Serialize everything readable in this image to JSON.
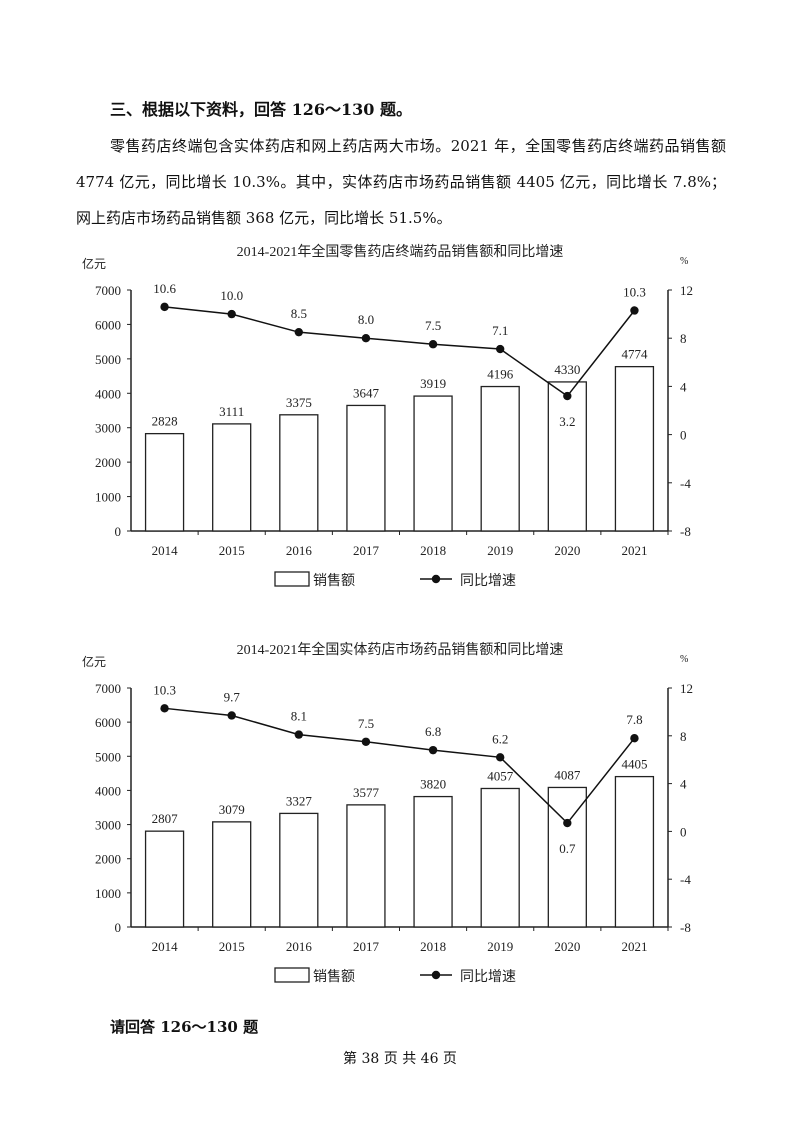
{
  "heading": "三、根据以下资料，回答 126～130 题。",
  "paragraph": "零售药店终端包含实体药店和网上药店两大市场。2021 年，全国零售药店终端药品销售额 4774 亿元，同比增长 10.3%。其中，实体药店市场药品销售额 4405 亿元，同比增长 7.8%；网上药店市场药品销售额 368 亿元，同比增长 51.5%。",
  "chart_data": [
    {
      "type": "bar+line",
      "title": "2014-2021年全国零售药店终端药品销售额和同比增速",
      "ylabel_left": "亿元",
      "ylabel_right": "%",
      "categories": [
        "2014",
        "2015",
        "2016",
        "2017",
        "2018",
        "2019",
        "2020",
        "2021"
      ],
      "ylim_left": [
        0,
        7000
      ],
      "yticks_left": [
        0,
        1000,
        2000,
        3000,
        4000,
        5000,
        6000,
        7000
      ],
      "ylim_right": [
        -8,
        12
      ],
      "yticks_right": [
        -8,
        -4,
        0,
        4,
        8,
        12
      ],
      "grid": false,
      "legend_position": "bottom",
      "series": [
        {
          "name": "销售额",
          "type": "bar",
          "axis": "left",
          "values": [
            2828,
            3111,
            3375,
            3647,
            3919,
            4196,
            4330,
            4774
          ],
          "labels": [
            "2828",
            "3111",
            "3375",
            "3647",
            "3919",
            "4196",
            "4330",
            "4774"
          ]
        },
        {
          "name": "同比增速",
          "type": "line",
          "axis": "right",
          "values": [
            10.6,
            10.0,
            8.5,
            8.0,
            7.5,
            7.1,
            3.2,
            10.3
          ],
          "labels": [
            "10.6",
            "10.0",
            "8.5",
            "8.0",
            "7.5",
            "7.1",
            "3.2",
            "10.3"
          ]
        }
      ]
    },
    {
      "type": "bar+line",
      "title": "2014-2021年全国实体药店市场药品销售额和同比增速",
      "ylabel_left": "亿元",
      "ylabel_right": "%",
      "categories": [
        "2014",
        "2015",
        "2016",
        "2017",
        "2018",
        "2019",
        "2020",
        "2021"
      ],
      "ylim_left": [
        0,
        7000
      ],
      "yticks_left": [
        0,
        1000,
        2000,
        3000,
        4000,
        5000,
        6000,
        7000
      ],
      "ylim_right": [
        -8,
        12
      ],
      "yticks_right": [
        -8,
        -4,
        0,
        4,
        8,
        12
      ],
      "grid": false,
      "legend_position": "bottom",
      "series": [
        {
          "name": "销售额",
          "type": "bar",
          "axis": "left",
          "values": [
            2807,
            3079,
            3327,
            3577,
            3820,
            4057,
            4087,
            4405
          ],
          "labels": [
            "2807",
            "3079",
            "3327",
            "3577",
            "3820",
            "4057",
            "4087",
            "4405"
          ]
        },
        {
          "name": "同比增速",
          "type": "line",
          "axis": "right",
          "values": [
            10.3,
            9.7,
            8.1,
            7.5,
            6.8,
            6.2,
            0.7,
            7.8
          ],
          "labels": [
            "10.3",
            "9.7",
            "8.1",
            "7.5",
            "6.8",
            "6.2",
            "0.7",
            "7.8"
          ]
        }
      ]
    }
  ],
  "footer": {
    "question": "请回答 126～130 题",
    "page": "第 38 页  共 46 页"
  }
}
